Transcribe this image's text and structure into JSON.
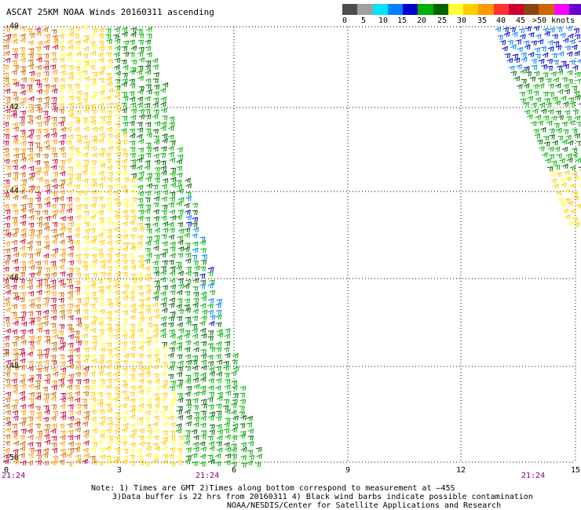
{
  "header": {
    "title": "ASCAT 25KM NOAA Winds 20160311 ascending"
  },
  "legend": {
    "colors": [
      "#4d4d4d",
      "#a0a0a0",
      "#00e6ff",
      "#0080ff",
      "#0000cc",
      "#00b000",
      "#006400",
      "#ffff33",
      "#ffcc00",
      "#ff9900",
      "#ff3333",
      "#cc0033",
      "#8b4513",
      "#cc6600",
      "#ff00ff",
      "#6600cc"
    ],
    "labels": [
      "0",
      "5",
      "10",
      "15",
      "20",
      "25",
      "30",
      "35",
      "40",
      "45",
      ">50 knots"
    ]
  },
  "axes": {
    "y_labels": [
      "-40",
      "-42",
      "-44",
      "-46",
      "-48",
      "-50"
    ],
    "x_labels": [
      "0",
      "3",
      "6",
      "9",
      "12",
      "15"
    ],
    "time_labels": [
      "21:24",
      "21:24",
      "21:24"
    ]
  },
  "notes": {
    "line1": "Note: 1) Times are GMT 2)Times along bottom correspond to measurement at –45S",
    "line2": "3)Data buffer is 22 hrs from 20160311 4) Black wind barbs indicate possible contamination",
    "line3": "NOAA/NESDIS/Center for Satellite Applications and Research"
  }
}
